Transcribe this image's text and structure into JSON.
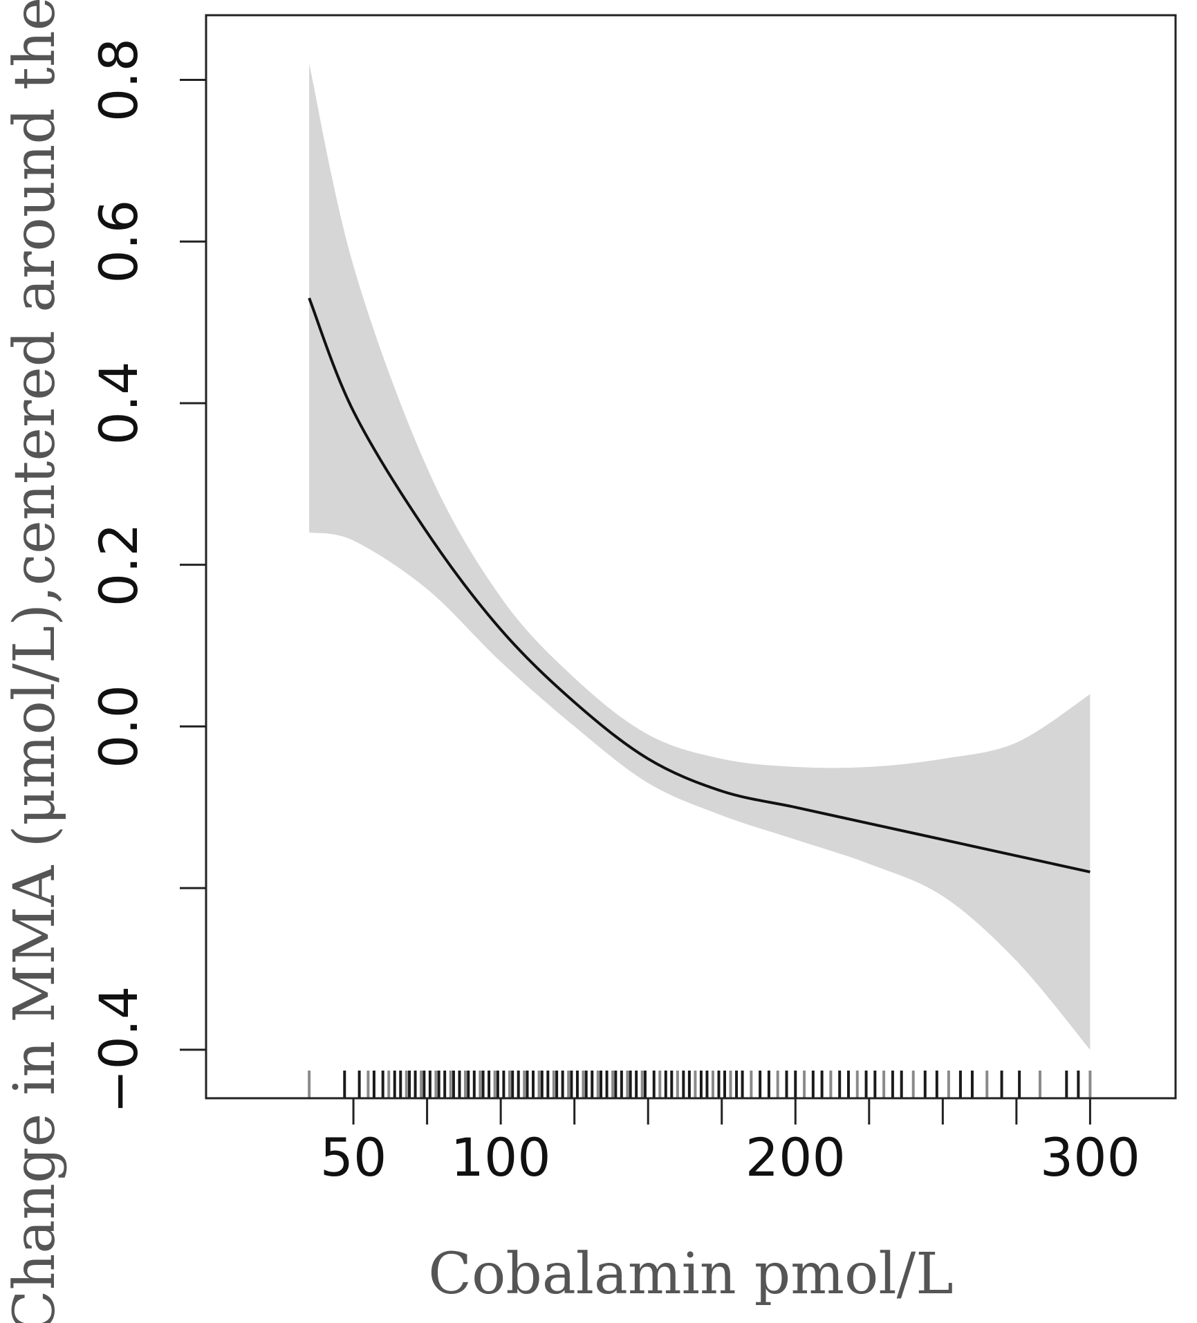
{
  "chart_data": {
    "type": "line",
    "title": "",
    "xlabel": "Cobalamin pmol/L",
    "ylabel": "Change in MMA (μmol/L),centered around the mean",
    "xlim": [
      0,
      329
    ],
    "ylim": [
      -0.46,
      0.88
    ],
    "x_ticks": [
      50,
      75,
      100,
      125,
      150,
      175,
      200,
      225,
      250,
      275,
      300
    ],
    "x_tick_labels": [
      {
        "value": 50,
        "label": "50"
      },
      {
        "value": 100,
        "label": "100"
      },
      {
        "value": 200,
        "label": "200"
      },
      {
        "value": 300,
        "label": "300"
      }
    ],
    "y_ticks": [
      -0.4,
      -0.2,
      0.0,
      0.2,
      0.4,
      0.6,
      0.8
    ],
    "y_tick_labels": [
      {
        "value": -0.4,
        "label": "−0.4"
      },
      {
        "value": 0.0,
        "label": "0.0"
      },
      {
        "value": 0.2,
        "label": "0.2"
      },
      {
        "value": 0.4,
        "label": "0.4"
      },
      {
        "value": 0.6,
        "label": "0.6"
      },
      {
        "value": 0.8,
        "label": "0.8"
      }
    ],
    "grid": false,
    "legend": "none",
    "series": [
      {
        "x": [
          35,
          50,
          75,
          100,
          125,
          150,
          175,
          200,
          225,
          250,
          275,
          300
        ],
        "y": [
          0.53,
          0.39,
          0.24,
          0.12,
          0.03,
          -0.04,
          -0.08,
          -0.1,
          -0.12,
          -0.14,
          -0.16,
          -0.18
        ]
      }
    ],
    "confidence_band": {
      "x": [
        35,
        50,
        75,
        100,
        125,
        150,
        175,
        200,
        225,
        250,
        275,
        300
      ],
      "lower": [
        0.24,
        0.23,
        0.17,
        0.08,
        0.0,
        -0.07,
        -0.11,
        -0.14,
        -0.17,
        -0.21,
        -0.29,
        -0.4
      ],
      "upper": [
        0.82,
        0.57,
        0.32,
        0.16,
        0.06,
        -0.01,
        -0.04,
        -0.05,
        -0.05,
        -0.04,
        -0.02,
        0.04
      ]
    },
    "rug_x": [
      35,
      47,
      52,
      55,
      57,
      60,
      62,
      64,
      66,
      68,
      69,
      71,
      73,
      74,
      76,
      78,
      79,
      81,
      83,
      84,
      86,
      88,
      89,
      91,
      93,
      94,
      96,
      98,
      99,
      101,
      103,
      104,
      106,
      108,
      109,
      111,
      113,
      114,
      116,
      118,
      119,
      121,
      123,
      124,
      126,
      128,
      129,
      131,
      133,
      134,
      136,
      138,
      139,
      141,
      143,
      144,
      146,
      148,
      149,
      152,
      154,
      156,
      158,
      160,
      162,
      164,
      166,
      168,
      170,
      172,
      174,
      176,
      178,
      180,
      182,
      185,
      188,
      191,
      194,
      197,
      200,
      203,
      206,
      209,
      212,
      215,
      218,
      221,
      224,
      227,
      230,
      233,
      236,
      240,
      244,
      248,
      252,
      256,
      260,
      265,
      270,
      276,
      283,
      292,
      296,
      300
    ],
    "colors": {
      "line": "#111111",
      "band": "#d6d6d6",
      "axis": "#222222",
      "rug": "#1a1a1a"
    }
  }
}
